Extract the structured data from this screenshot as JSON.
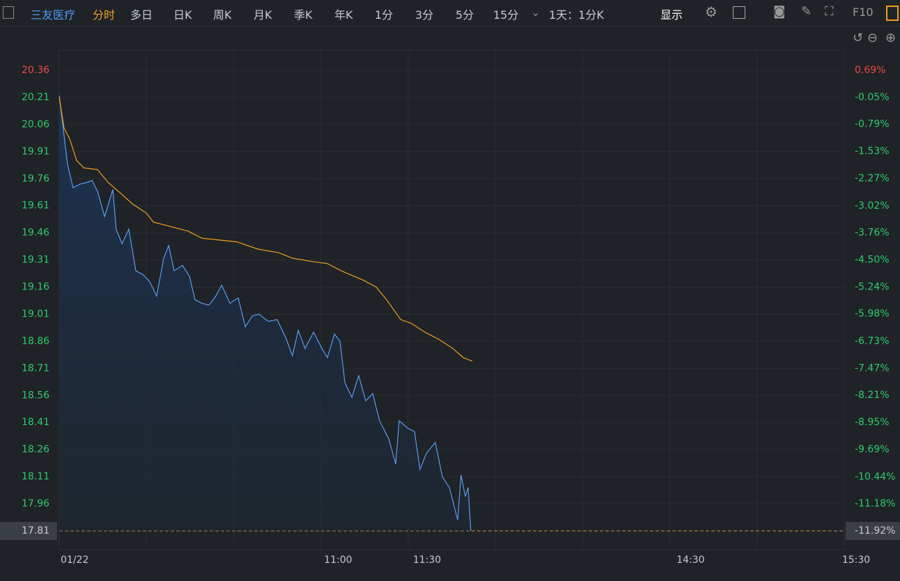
{
  "toolbar": {
    "stock": "三友医疗",
    "tabs": [
      "分时",
      "多日",
      "日K",
      "周K",
      "月K",
      "季K",
      "年K",
      "1分",
      "3分",
      "5分",
      "15分"
    ],
    "time_setting": "1天：1分K",
    "display": "显示",
    "f10": "F10"
  },
  "chart_data": {
    "type": "line",
    "xlim": [
      0,
      260
    ],
    "xticks": [
      {
        "value": 0,
        "label": "01/22"
      },
      {
        "value": 91,
        "label": "11:00"
      },
      {
        "value": 120,
        "label": "11:30"
      },
      {
        "value": 206,
        "label": "14:30"
      },
      {
        "value": 260,
        "label": "15:30"
      }
    ],
    "ylim": [
      17.81,
      20.36
    ],
    "yticks": [
      20.36,
      20.21,
      20.06,
      19.91,
      19.76,
      19.61,
      19.46,
      19.31,
      19.16,
      19.01,
      18.86,
      18.71,
      18.56,
      18.41,
      18.26,
      18.11,
      17.96,
      17.81
    ],
    "y2lim": [
      -11.92,
      0.69
    ],
    "y2ticks": [
      {
        "value": 0.69,
        "label": "0.69%"
      },
      {
        "value": -0.05,
        "label": "-0.05%"
      },
      {
        "value": -0.79,
        "label": "-0.79%"
      },
      {
        "value": -1.53,
        "label": "-1.53%"
      },
      {
        "value": -2.27,
        "label": "-2.27%"
      },
      {
        "value": -3.02,
        "label": "-3.02%"
      },
      {
        "value": -3.76,
        "label": "-3.76%"
      },
      {
        "value": -4.5,
        "label": "-4.50%"
      },
      {
        "value": -5.24,
        "label": "-5.24%"
      },
      {
        "value": -5.98,
        "label": "-5.98%"
      },
      {
        "value": -6.73,
        "label": "-6.73%"
      },
      {
        "value": -7.47,
        "label": "-7.47%"
      },
      {
        "value": -8.21,
        "label": "-8.21%"
      },
      {
        "value": -8.95,
        "label": "-8.95%"
      },
      {
        "value": -9.69,
        "label": "-9.69%"
      },
      {
        "value": -10.44,
        "label": "-10.44%"
      },
      {
        "value": -11.18,
        "label": "-11.18%"
      },
      {
        "value": -11.92,
        "label": "-11.92%"
      }
    ],
    "series": [
      {
        "color": "#5b9cf0",
        "fill": true,
        "x": [
          0,
          1.1,
          2.7,
          4.5,
          6.8,
          9.1,
          10.7,
          12.5,
          14.8,
          17.5,
          18.6,
          20.5,
          22.7,
          25,
          27.3,
          29.5,
          31.8,
          34.1,
          35.7,
          37.5,
          40.2,
          42.5,
          44.3,
          46.6,
          48.9,
          51.1,
          53,
          55.7,
          58.4,
          60.7,
          63,
          65.2,
          68.2,
          71.1,
          73.9,
          76.1,
          78,
          80.2,
          83,
          85.7,
          87.5,
          89.8,
          91.6,
          93.2,
          95.5,
          97.7,
          100,
          102.3,
          104.5,
          107.5,
          109.8,
          110.9,
          113.6,
          115.9,
          117.7,
          119.8,
          122.7,
          125,
          127.3,
          130,
          131.1,
          132.5,
          133.4,
          134.3
        ],
        "values": [
          20.22,
          20.07,
          19.84,
          19.71,
          19.73,
          19.74,
          19.75,
          19.69,
          19.55,
          19.7,
          19.48,
          19.4,
          19.48,
          19.25,
          19.23,
          19.19,
          19.11,
          19.32,
          19.39,
          19.25,
          19.28,
          19.22,
          19.09,
          19.07,
          19.06,
          19.11,
          19.17,
          19.07,
          19.1,
          18.94,
          19,
          19.01,
          18.97,
          18.98,
          18.88,
          18.78,
          18.92,
          18.82,
          18.91,
          18.82,
          18.77,
          18.9,
          18.86,
          18.63,
          18.55,
          18.67,
          18.53,
          18.57,
          18.42,
          18.32,
          18.18,
          18.42,
          18.38,
          18.36,
          18.15,
          18.24,
          18.3,
          18.11,
          18.05,
          17.87,
          18.12,
          18,
          18.05,
          17.81
        ]
      },
      {
        "color": "#f0a020",
        "fill": false,
        "x": [
          0,
          1.6,
          3.4,
          5.7,
          8,
          12.5,
          15.9,
          19.3,
          23.9,
          28.4,
          30.7,
          37.5,
          42,
          46.6,
          58,
          64.8,
          71.6,
          76.1,
          83,
          87.5,
          92,
          98.9,
          103.4,
          106.8,
          111.4,
          114.8,
          119.3,
          123.9,
          128.4,
          131.8,
          134.8
        ],
        "values": [
          20.21,
          20.04,
          19.98,
          19.86,
          19.82,
          19.81,
          19.74,
          19.69,
          19.62,
          19.57,
          19.52,
          19.49,
          19.47,
          19.43,
          19.41,
          19.37,
          19.35,
          19.32,
          19.3,
          19.29,
          19.25,
          19.2,
          19.16,
          19.09,
          18.98,
          18.96,
          18.91,
          18.87,
          18.82,
          18.77,
          18.75
        ]
      }
    ]
  }
}
